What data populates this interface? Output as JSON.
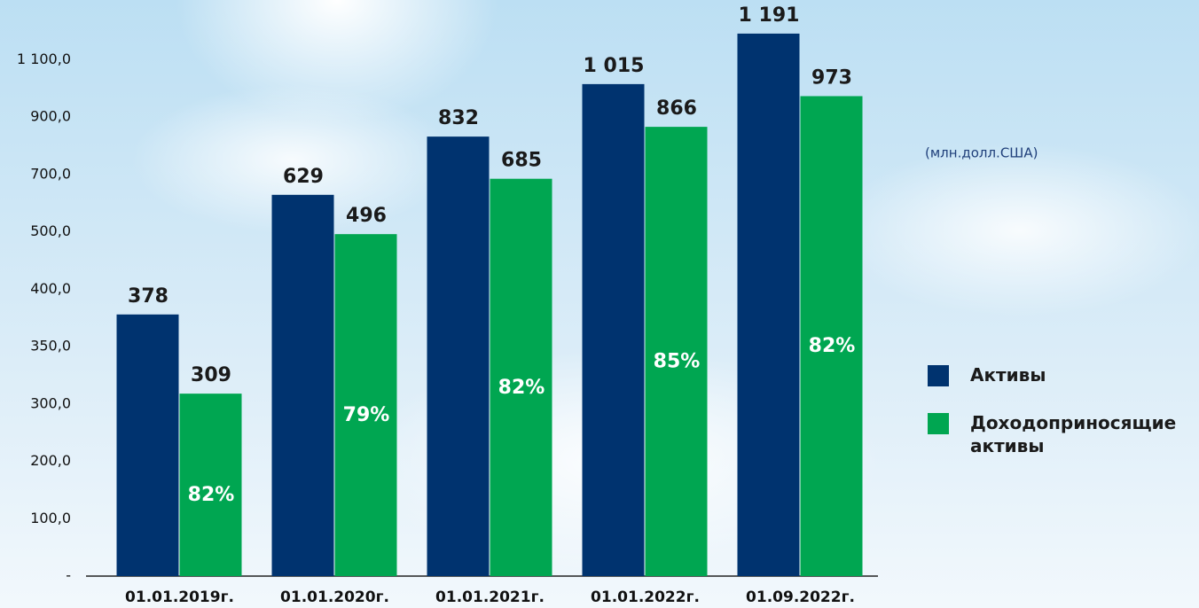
{
  "chart_data": {
    "type": "bar",
    "subtitle": "(млн.долл.США)",
    "categories": [
      "01.01.2019г.",
      "01.01.2020г.",
      "01.01.2021г.",
      "01.01.2022г.",
      "01.09.2022г."
    ],
    "series": [
      {
        "name": "Активы",
        "color": "#00336f",
        "values": [
          378,
          629,
          832,
          1015,
          1191
        ],
        "value_labels": [
          "378",
          "629",
          "832",
          "1 015",
          "1 191"
        ]
      },
      {
        "name": "Доходоприносящие активы",
        "color": "#00a651",
        "values": [
          309,
          496,
          685,
          866,
          973
        ]
      }
    ],
    "shares": {
      "values": [
        82,
        79,
        82,
        85,
        82
      ],
      "labels": [
        "82%",
        "79%",
        "82%",
        "85%",
        "82%"
      ]
    },
    "ylim": [
      0,
      1200
    ],
    "yticks": [
      {
        "value": 0,
        "label": "-"
      },
      {
        "value": 100,
        "label": "100,0"
      },
      {
        "value": 200,
        "label": "200,0"
      },
      {
        "value": 300,
        "label": "300,0"
      },
      {
        "value": 350,
        "label": "350,0"
      },
      {
        "value": 400,
        "label": "400,0"
      },
      {
        "value": 500,
        "label": "500,0"
      },
      {
        "value": 700,
        "label": "700,0"
      },
      {
        "value": 900,
        "label": "900,0"
      },
      {
        "value": 1100,
        "label": "1 100,0"
      }
    ],
    "legend": "right"
  }
}
